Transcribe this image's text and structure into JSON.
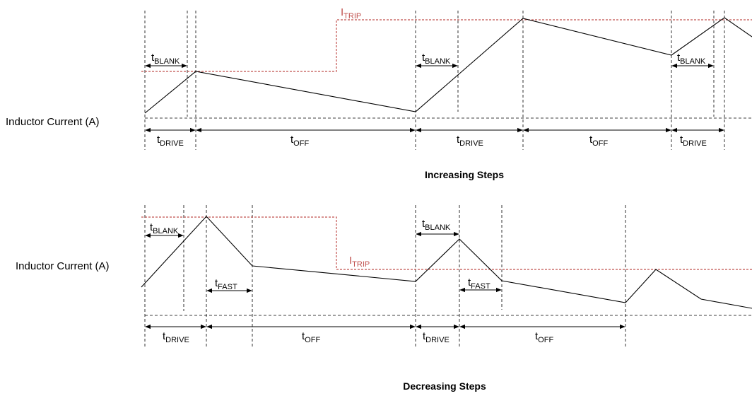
{
  "diagram_top": {
    "ylabel": "Inductor Current (A)",
    "itrip": {
      "main": "I",
      "sub": "TRIP"
    },
    "tblank_labels": [
      {
        "main": "t",
        "sub": "BLANK"
      },
      {
        "main": "t",
        "sub": "BLANK"
      },
      {
        "main": "t",
        "sub": "BLANK"
      }
    ],
    "phase_labels": [
      {
        "main": "t",
        "sub": "DRIVE"
      },
      {
        "main": "t",
        "sub": "OFF"
      },
      {
        "main": "t",
        "sub": "DRIVE"
      },
      {
        "main": "t",
        "sub": "OFF"
      },
      {
        "main": "t",
        "sub": "DRIVE"
      }
    ],
    "caption": "Increasing Steps"
  },
  "diagram_bottom": {
    "ylabel": "Inductor Current (A)",
    "itrip": {
      "main": "I",
      "sub": "TRIP"
    },
    "tblank_labels": [
      {
        "main": "t",
        "sub": "BLANK"
      },
      {
        "main": "t",
        "sub": "BLANK"
      }
    ],
    "tfast_labels": [
      {
        "main": "t",
        "sub": "FAST"
      },
      {
        "main": "t",
        "sub": "FAST"
      }
    ],
    "phase_labels": [
      {
        "main": "t",
        "sub": "DRIVE"
      },
      {
        "main": "t",
        "sub": "OFF"
      },
      {
        "main": "t",
        "sub": "DRIVE"
      },
      {
        "main": "t",
        "sub": "OFF"
      }
    ],
    "caption": "Decreasing Steps"
  },
  "colors": {
    "trace": "#000000",
    "itrip": "#c0504d",
    "guide": "#000000"
  }
}
